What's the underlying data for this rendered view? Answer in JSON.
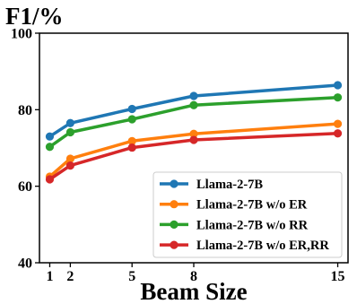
{
  "chart_data": {
    "type": "line",
    "title": "",
    "xlabel": "Beam Size",
    "ylabel": "F1/%",
    "x": [
      1,
      2,
      5,
      8,
      15
    ],
    "xticks": [
      "1",
      "2",
      "5",
      "8",
      "15"
    ],
    "xlim": [
      0.5,
      15.5
    ],
    "ylim": [
      40,
      100
    ],
    "yticks": [
      "40",
      "60",
      "80",
      "100"
    ],
    "grid": false,
    "legend_position": "bottom-right",
    "series": [
      {
        "name": "Llama-2-7B",
        "color": "#1f77b4",
        "values": [
          73.0,
          76.5,
          80.2,
          83.6,
          86.4
        ]
      },
      {
        "name": "Llama-2-7B w/o ER",
        "color": "#ff7f0e",
        "values": [
          62.5,
          67.2,
          71.8,
          73.7,
          76.3
        ]
      },
      {
        "name": "Llama-2-7B w/o RR",
        "color": "#2ca02c",
        "values": [
          70.3,
          74.1,
          77.5,
          81.2,
          83.2
        ]
      },
      {
        "name": "Llama-2-7B w/o ER,RR",
        "color": "#d62728",
        "values": [
          61.8,
          65.4,
          70.1,
          72.1,
          73.8
        ]
      }
    ]
  }
}
